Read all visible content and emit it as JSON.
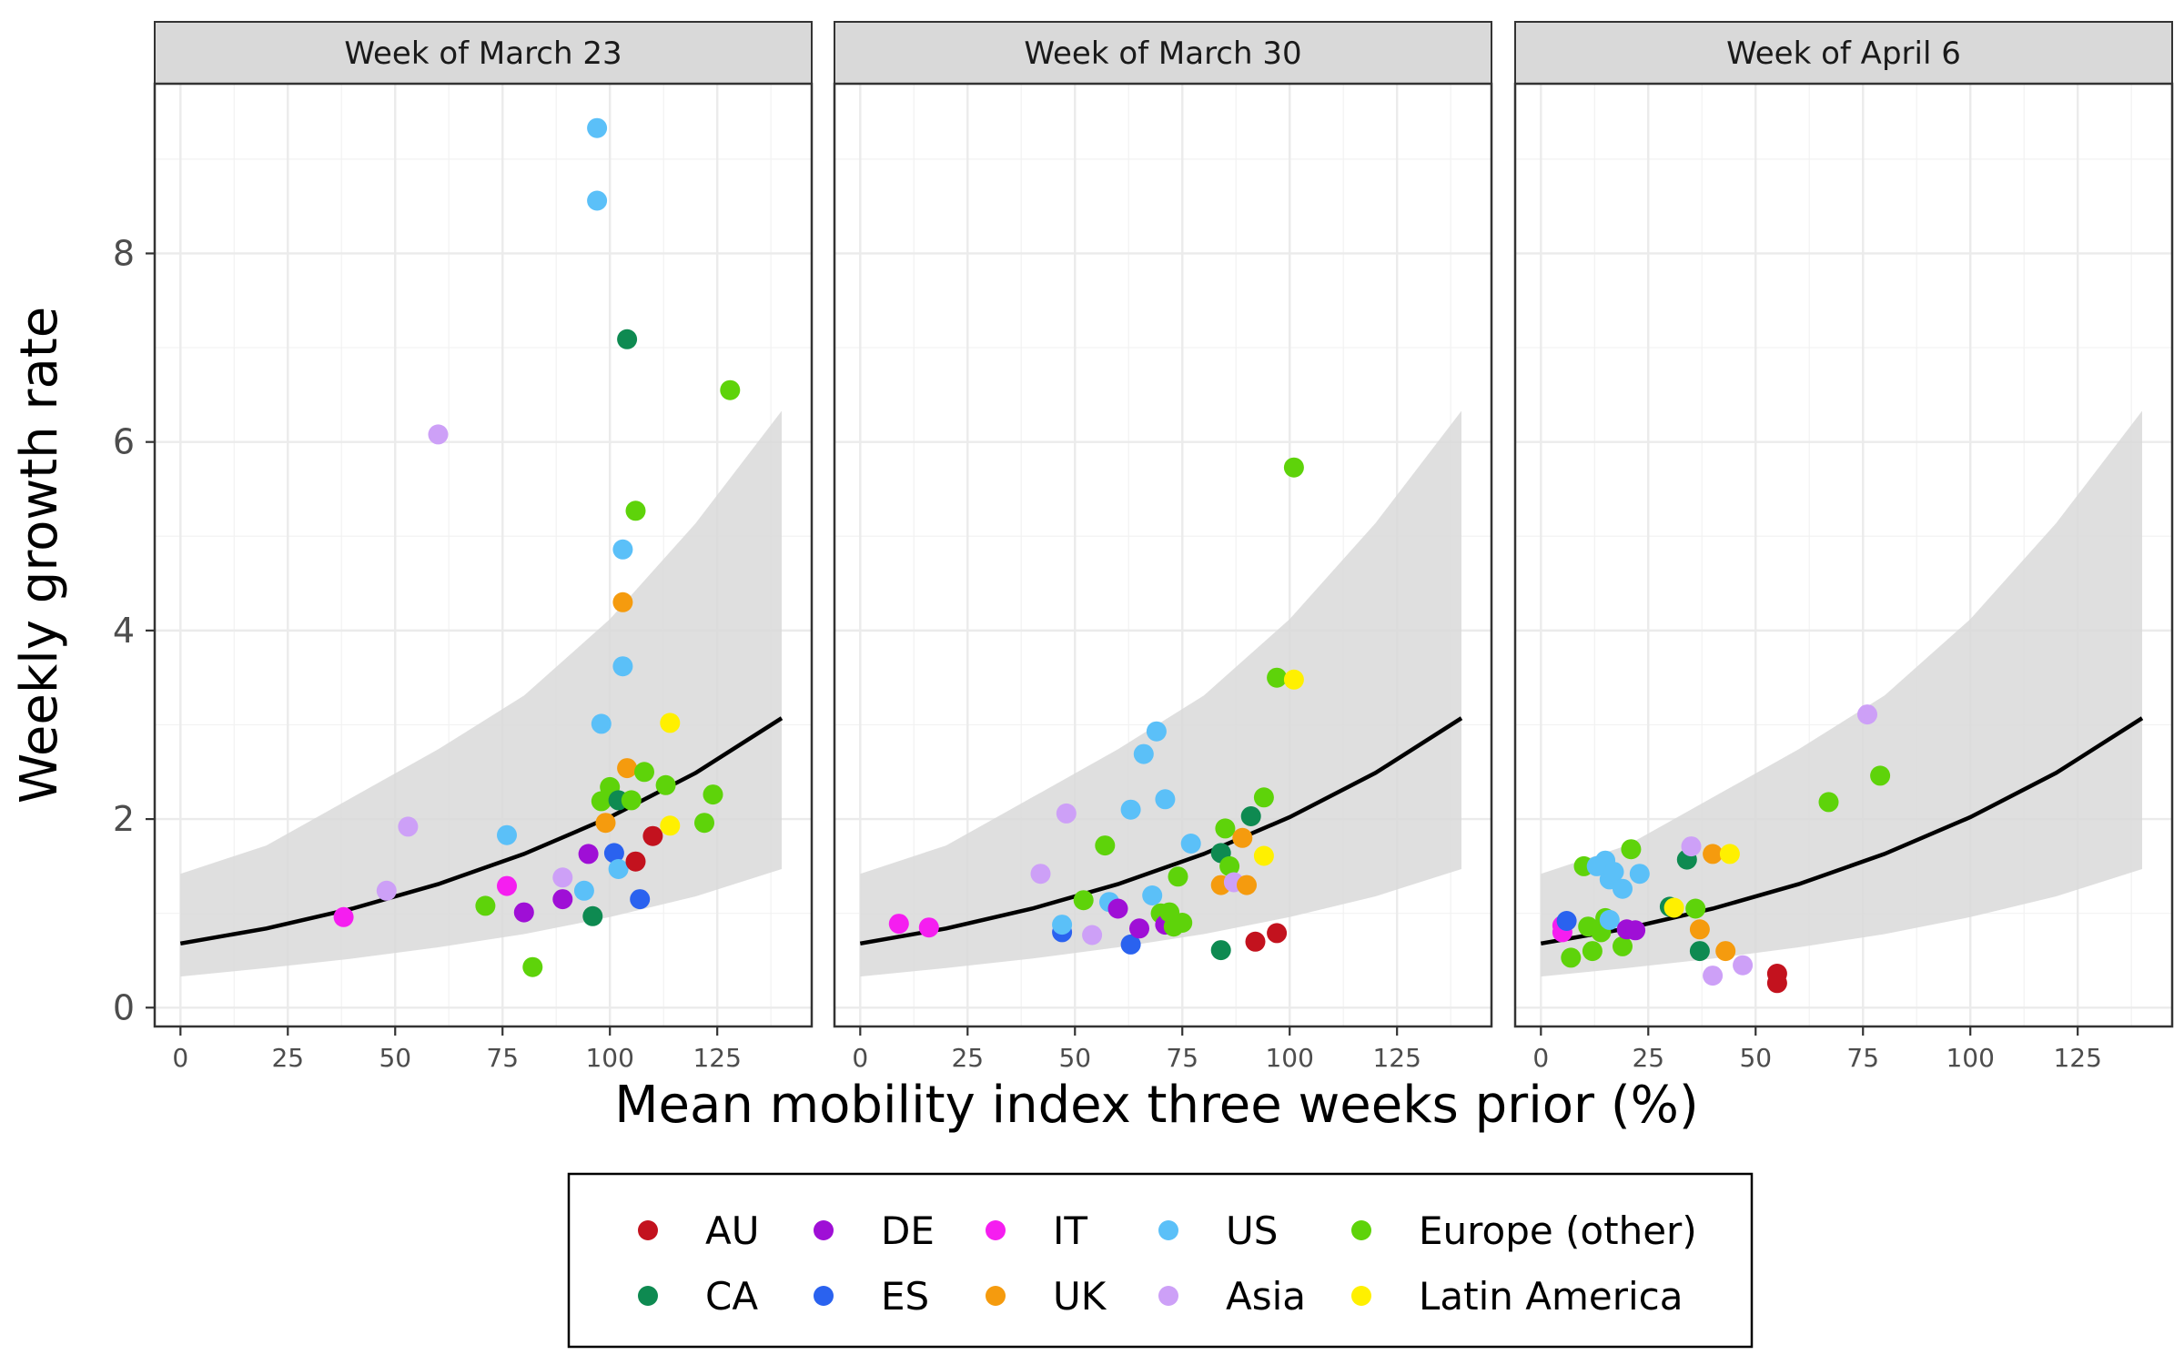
{
  "chart_data": {
    "type": "scatter",
    "xlabel": "Mean mobility index three weeks prior (%)",
    "ylabel": "Weekly growth rate",
    "xlim": [
      -6,
      147
    ],
    "ylim": [
      -0.2,
      9.8
    ],
    "x_ticks": [
      0,
      25,
      50,
      75,
      100,
      125
    ],
    "y_ticks": [
      0,
      2,
      4,
      6,
      8
    ],
    "grid": true,
    "legend_position": "bottom",
    "groups": [
      {
        "name": "AU",
        "color": "#c3121e"
      },
      {
        "name": "CA",
        "color": "#0e8a51"
      },
      {
        "name": "DE",
        "color": "#9f0fd6"
      },
      {
        "name": "ES",
        "color": "#2a62ef"
      },
      {
        "name": "IT",
        "color": "#f51ef0"
      },
      {
        "name": "UK",
        "color": "#f59b0e"
      },
      {
        "name": "US",
        "color": "#5bc0f8"
      },
      {
        "name": "Asia",
        "color": "#cda0f7"
      },
      {
        "name": "Europe (other)",
        "color": "#5ed30a"
      },
      {
        "name": "Latin America",
        "color": "#fff000"
      }
    ],
    "fit": {
      "x": [
        0,
        20,
        40,
        60,
        80,
        100,
        120,
        140
      ],
      "y": [
        0.68,
        0.84,
        1.05,
        1.31,
        1.63,
        2.02,
        2.49,
        3.07
      ],
      "lower": [
        0.33,
        0.42,
        0.52,
        0.64,
        0.78,
        0.96,
        1.18,
        1.47
      ],
      "upper": [
        1.42,
        1.72,
        2.23,
        2.74,
        3.31,
        4.12,
        5.14,
        6.33
      ],
      "color": "#000000",
      "band_color": "#d9d9d9"
    },
    "panels": [
      {
        "title": "Week of March 23",
        "points": [
          {
            "x": 38,
            "y": 0.96,
            "group": "IT"
          },
          {
            "x": 48,
            "y": 1.24,
            "group": "Asia"
          },
          {
            "x": 53,
            "y": 1.92,
            "group": "Asia"
          },
          {
            "x": 60,
            "y": 6.08,
            "group": "Asia"
          },
          {
            "x": 71,
            "y": 1.08,
            "group": "Europe (other)"
          },
          {
            "x": 76,
            "y": 1.29,
            "group": "IT"
          },
          {
            "x": 76,
            "y": 1.83,
            "group": "US"
          },
          {
            "x": 80,
            "y": 1.01,
            "group": "DE"
          },
          {
            "x": 82,
            "y": 0.43,
            "group": "Europe (other)"
          },
          {
            "x": 89,
            "y": 1.15,
            "group": "DE"
          },
          {
            "x": 89,
            "y": 1.38,
            "group": "Asia"
          },
          {
            "x": 94,
            "y": 1.24,
            "group": "US"
          },
          {
            "x": 95,
            "y": 1.63,
            "group": "DE"
          },
          {
            "x": 96,
            "y": 0.97,
            "group": "CA"
          },
          {
            "x": 97,
            "y": 9.33,
            "group": "US"
          },
          {
            "x": 97,
            "y": 8.56,
            "group": "US"
          },
          {
            "x": 98,
            "y": 3.01,
            "group": "US"
          },
          {
            "x": 98,
            "y": 2.19,
            "group": "Europe (other)"
          },
          {
            "x": 99,
            "y": 1.96,
            "group": "UK"
          },
          {
            "x": 100,
            "y": 2.34,
            "group": "Europe (other)"
          },
          {
            "x": 101,
            "y": 1.64,
            "group": "ES"
          },
          {
            "x": 102,
            "y": 1.47,
            "group": "US"
          },
          {
            "x": 102,
            "y": 2.2,
            "group": "CA"
          },
          {
            "x": 103,
            "y": 4.86,
            "group": "US"
          },
          {
            "x": 103,
            "y": 4.3,
            "group": "UK"
          },
          {
            "x": 103,
            "y": 3.62,
            "group": "US"
          },
          {
            "x": 104,
            "y": 7.09,
            "group": "CA"
          },
          {
            "x": 104,
            "y": 2.54,
            "group": "UK"
          },
          {
            "x": 105,
            "y": 2.2,
            "group": "Europe (other)"
          },
          {
            "x": 106,
            "y": 5.27,
            "group": "Europe (other)"
          },
          {
            "x": 106,
            "y": 1.55,
            "group": "AU"
          },
          {
            "x": 107,
            "y": 1.15,
            "group": "ES"
          },
          {
            "x": 108,
            "y": 2.5,
            "group": "Europe (other)"
          },
          {
            "x": 110,
            "y": 1.82,
            "group": "AU"
          },
          {
            "x": 113,
            "y": 2.36,
            "group": "Europe (other)"
          },
          {
            "x": 114,
            "y": 1.93,
            "group": "Latin America"
          },
          {
            "x": 114,
            "y": 3.02,
            "group": "Latin America"
          },
          {
            "x": 122,
            "y": 1.96,
            "group": "Europe (other)"
          },
          {
            "x": 124,
            "y": 2.26,
            "group": "Europe (other)"
          },
          {
            "x": 128,
            "y": 6.55,
            "group": "Europe (other)"
          }
        ]
      },
      {
        "title": "Week of March 30",
        "points": [
          {
            "x": 9,
            "y": 0.89,
            "group": "IT"
          },
          {
            "x": 16,
            "y": 0.85,
            "group": "IT"
          },
          {
            "x": 42,
            "y": 1.42,
            "group": "Asia"
          },
          {
            "x": 47,
            "y": 0.8,
            "group": "ES"
          },
          {
            "x": 47,
            "y": 0.88,
            "group": "US"
          },
          {
            "x": 48,
            "y": 2.06,
            "group": "Asia"
          },
          {
            "x": 52,
            "y": 1.14,
            "group": "Europe (other)"
          },
          {
            "x": 54,
            "y": 0.77,
            "group": "Asia"
          },
          {
            "x": 57,
            "y": 1.72,
            "group": "Europe (other)"
          },
          {
            "x": 58,
            "y": 1.12,
            "group": "US"
          },
          {
            "x": 60,
            "y": 1.05,
            "group": "DE"
          },
          {
            "x": 63,
            "y": 2.1,
            "group": "US"
          },
          {
            "x": 63,
            "y": 0.67,
            "group": "ES"
          },
          {
            "x": 65,
            "y": 0.84,
            "group": "DE"
          },
          {
            "x": 66,
            "y": 2.69,
            "group": "US"
          },
          {
            "x": 68,
            "y": 1.19,
            "group": "US"
          },
          {
            "x": 69,
            "y": 2.93,
            "group": "US"
          },
          {
            "x": 70,
            "y": 1.0,
            "group": "Europe (other)"
          },
          {
            "x": 71,
            "y": 0.88,
            "group": "DE"
          },
          {
            "x": 71,
            "y": 2.21,
            "group": "US"
          },
          {
            "x": 72,
            "y": 1.01,
            "group": "Europe (other)"
          },
          {
            "x": 73,
            "y": 0.86,
            "group": "Europe (other)"
          },
          {
            "x": 74,
            "y": 1.39,
            "group": "Europe (other)"
          },
          {
            "x": 75,
            "y": 0.9,
            "group": "Europe (other)"
          },
          {
            "x": 77,
            "y": 1.74,
            "group": "US"
          },
          {
            "x": 84,
            "y": 0.61,
            "group": "CA"
          },
          {
            "x": 84,
            "y": 1.64,
            "group": "CA"
          },
          {
            "x": 84,
            "y": 1.3,
            "group": "UK"
          },
          {
            "x": 85,
            "y": 1.9,
            "group": "Europe (other)"
          },
          {
            "x": 86,
            "y": 1.5,
            "group": "Europe (other)"
          },
          {
            "x": 87,
            "y": 1.33,
            "group": "Asia"
          },
          {
            "x": 89,
            "y": 1.8,
            "group": "UK"
          },
          {
            "x": 90,
            "y": 1.3,
            "group": "UK"
          },
          {
            "x": 91,
            "y": 2.03,
            "group": "CA"
          },
          {
            "x": 92,
            "y": 0.7,
            "group": "AU"
          },
          {
            "x": 94,
            "y": 2.23,
            "group": "Europe (other)"
          },
          {
            "x": 94,
            "y": 1.61,
            "group": "Latin America"
          },
          {
            "x": 97,
            "y": 0.79,
            "group": "AU"
          },
          {
            "x": 97,
            "y": 3.5,
            "group": "Europe (other)"
          },
          {
            "x": 101,
            "y": 3.48,
            "group": "Latin America"
          },
          {
            "x": 101,
            "y": 5.73,
            "group": "Europe (other)"
          }
        ]
      },
      {
        "title": "Week of April 6",
        "points": [
          {
            "x": 5,
            "y": 0.87,
            "group": "IT"
          },
          {
            "x": 5,
            "y": 0.8,
            "group": "IT"
          },
          {
            "x": 6,
            "y": 0.92,
            "group": "ES"
          },
          {
            "x": 7,
            "y": 0.53,
            "group": "Europe (other)"
          },
          {
            "x": 10,
            "y": 1.5,
            "group": "Europe (other)"
          },
          {
            "x": 11,
            "y": 0.86,
            "group": "Europe (other)"
          },
          {
            "x": 12,
            "y": 0.6,
            "group": "Europe (other)"
          },
          {
            "x": 13,
            "y": 1.5,
            "group": "US"
          },
          {
            "x": 14,
            "y": 0.8,
            "group": "Europe (other)"
          },
          {
            "x": 15,
            "y": 0.95,
            "group": "Europe (other)"
          },
          {
            "x": 15,
            "y": 1.56,
            "group": "US"
          },
          {
            "x": 16,
            "y": 1.36,
            "group": "US"
          },
          {
            "x": 16,
            "y": 0.93,
            "group": "US"
          },
          {
            "x": 17,
            "y": 1.44,
            "group": "US"
          },
          {
            "x": 19,
            "y": 1.26,
            "group": "US"
          },
          {
            "x": 19,
            "y": 0.65,
            "group": "Europe (other)"
          },
          {
            "x": 20,
            "y": 0.83,
            "group": "DE"
          },
          {
            "x": 21,
            "y": 1.68,
            "group": "Europe (other)"
          },
          {
            "x": 22,
            "y": 0.82,
            "group": "DE"
          },
          {
            "x": 23,
            "y": 1.42,
            "group": "US"
          },
          {
            "x": 30,
            "y": 1.07,
            "group": "CA"
          },
          {
            "x": 31,
            "y": 1.06,
            "group": "Latin America"
          },
          {
            "x": 34,
            "y": 1.57,
            "group": "CA"
          },
          {
            "x": 35,
            "y": 1.71,
            "group": "Asia"
          },
          {
            "x": 36,
            "y": 1.05,
            "group": "Europe (other)"
          },
          {
            "x": 37,
            "y": 0.83,
            "group": "UK"
          },
          {
            "x": 37,
            "y": 0.6,
            "group": "CA"
          },
          {
            "x": 40,
            "y": 1.63,
            "group": "UK"
          },
          {
            "x": 40,
            "y": 0.34,
            "group": "Asia"
          },
          {
            "x": 43,
            "y": 0.6,
            "group": "UK"
          },
          {
            "x": 44,
            "y": 1.63,
            "group": "Latin America"
          },
          {
            "x": 47,
            "y": 0.45,
            "group": "Asia"
          },
          {
            "x": 55,
            "y": 0.36,
            "group": "AU"
          },
          {
            "x": 55,
            "y": 0.26,
            "group": "AU"
          },
          {
            "x": 67,
            "y": 2.18,
            "group": "Europe (other)"
          },
          {
            "x": 76,
            "y": 3.11,
            "group": "Asia"
          },
          {
            "x": 79,
            "y": 2.46,
            "group": "Europe (other)"
          }
        ]
      }
    ]
  }
}
